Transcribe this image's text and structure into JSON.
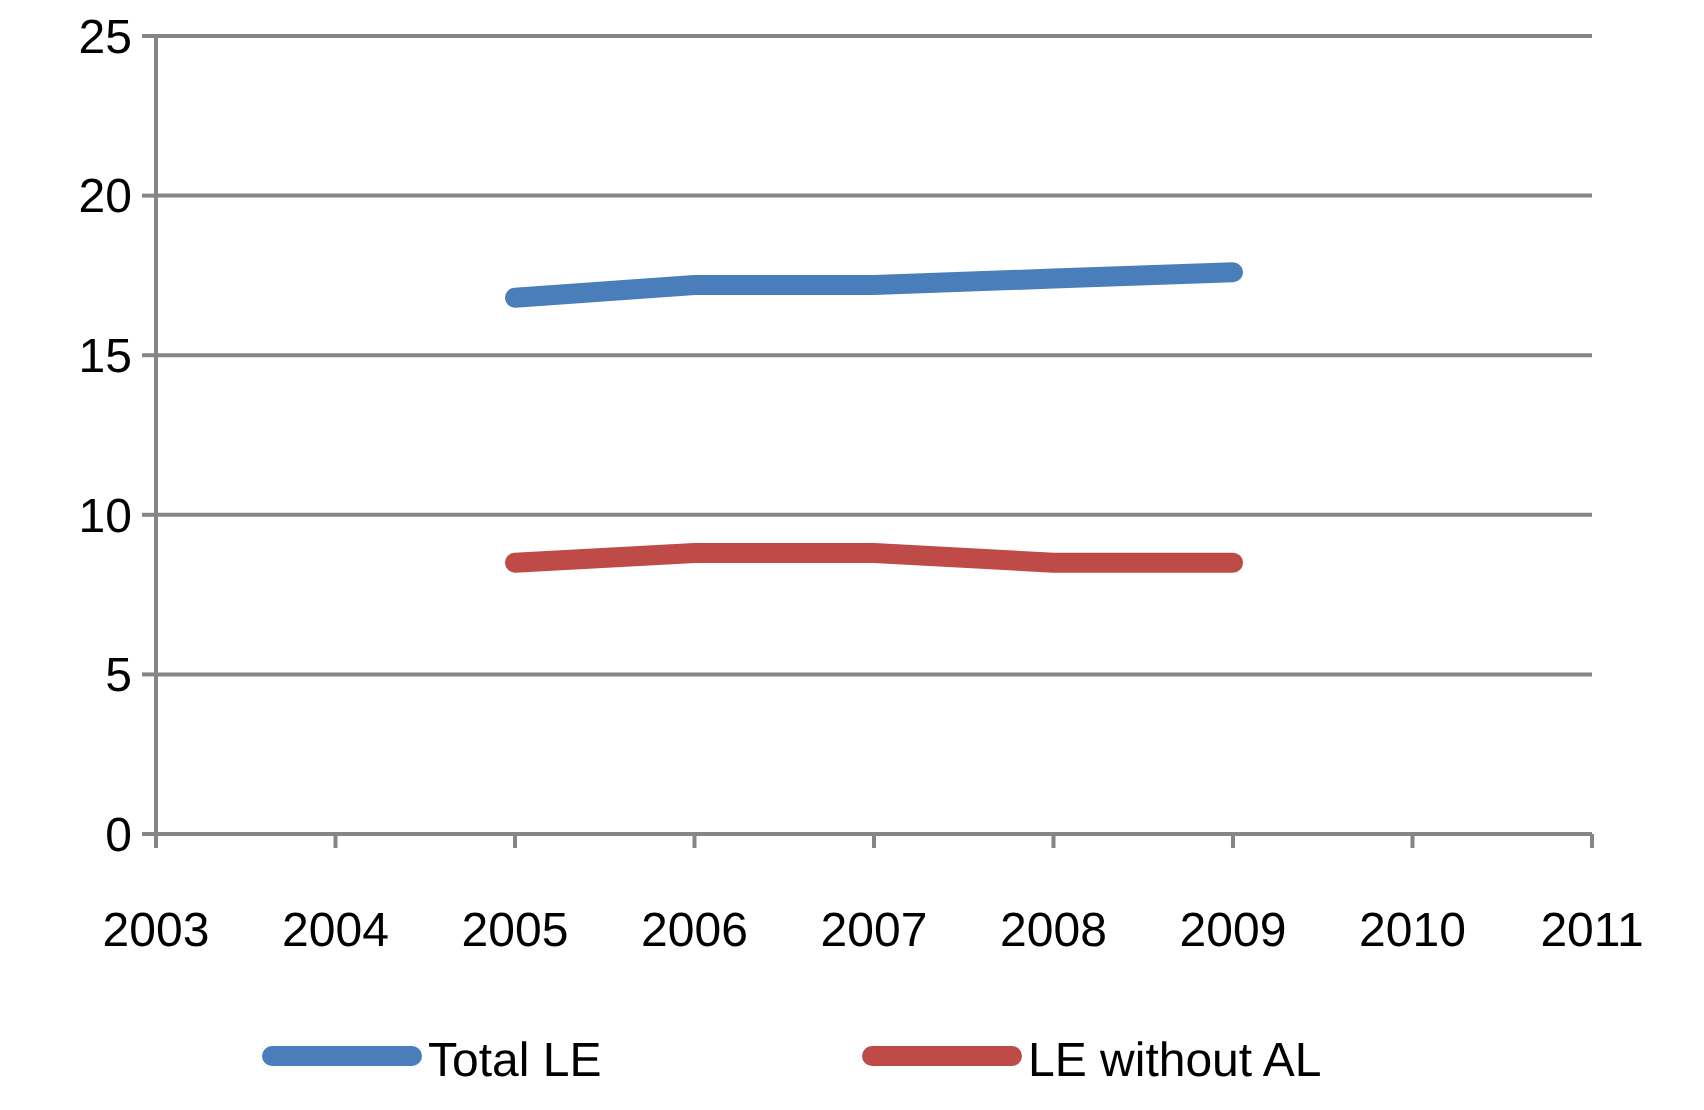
{
  "chart_data": {
    "type": "line",
    "x": [
      2005,
      2006,
      2007,
      2008,
      2009
    ],
    "series": [
      {
        "name": "Total LE",
        "color": "#4a7ebb",
        "values": [
          16.8,
          17.2,
          17.2,
          17.4,
          17.6
        ]
      },
      {
        "name": "LE without AL",
        "color": "#be4b48",
        "values": [
          8.5,
          8.8,
          8.8,
          8.5,
          8.5
        ]
      }
    ],
    "xlim": [
      2003,
      2011
    ],
    "xticks": [
      2003,
      2004,
      2005,
      2006,
      2007,
      2008,
      2009,
      2010,
      2011
    ],
    "ylim": [
      0,
      25
    ],
    "yticks": [
      0,
      5,
      10,
      15,
      20,
      25
    ],
    "grid": "y",
    "legend": "bottom",
    "marker": "none",
    "line_style": "solid"
  }
}
